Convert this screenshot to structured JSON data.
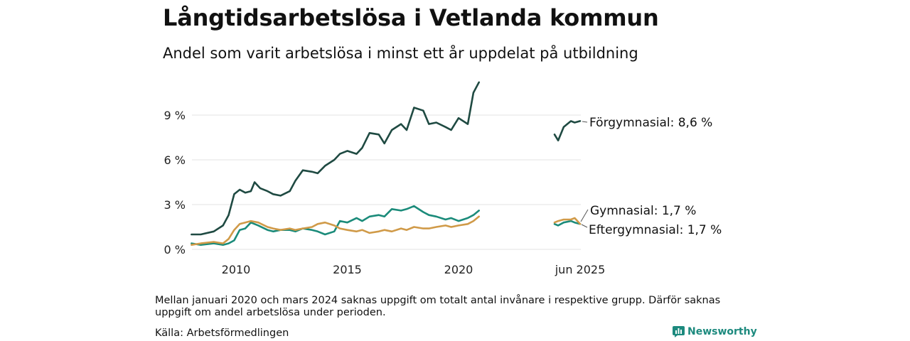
{
  "title": "Långtidsarbetslösa i Vetlanda kommun",
  "subtitle": "Andel som varit arbetslösa i minst ett år uppdelat på utbildning",
  "note": "Mellan januari 2020 och mars 2024 saknas uppgift om totalt antal invånare i respektive grupp. Därför saknas uppgift om andel arbetslösa under perioden.",
  "source": "Källa: Arbetsförmedlingen",
  "brand": "Newsworthy",
  "chart_data": {
    "type": "line",
    "title": "Långtidsarbetslösa i Vetlanda kommun",
    "subtitle": "Andel som varit arbetslösa i minst ett år uppdelat på utbildning",
    "xlabel": "",
    "ylabel": "",
    "ylim": [
      0,
      11.5
    ],
    "yticks": [
      0,
      3,
      6,
      9
    ],
    "ytick_labels": [
      "0 %",
      "3 %",
      "6 %",
      "9 %"
    ],
    "xtick_labels": [
      {
        "x": "2010-01",
        "label": "2010"
      },
      {
        "x": "2015-01",
        "label": "2015"
      },
      {
        "x": "2020-01",
        "label": "2020"
      },
      {
        "x": "2025-06",
        "label": "jun 2025"
      }
    ],
    "grid": "horizontal",
    "legend": "end-labels",
    "gap": {
      "from": "2020-12",
      "to": "2024-04"
    },
    "series": [
      {
        "name": "Förgymnasial",
        "end_label": "Förgymnasial: 8,6 %",
        "color": "#1f4a42",
        "segments": [
          [
            [
              "2008-01",
              1.0
            ],
            [
              "2008-06",
              1.0
            ],
            [
              "2009-01",
              1.2
            ],
            [
              "2009-06",
              1.6
            ],
            [
              "2009-09",
              2.3
            ],
            [
              "2009-12",
              3.7
            ],
            [
              "2010-03",
              4.0
            ],
            [
              "2010-06",
              3.8
            ],
            [
              "2010-09",
              3.9
            ],
            [
              "2010-11",
              4.5
            ],
            [
              "2011-02",
              4.1
            ],
            [
              "2011-06",
              3.9
            ],
            [
              "2011-09",
              3.7
            ],
            [
              "2012-01",
              3.6
            ],
            [
              "2012-06",
              3.9
            ],
            [
              "2012-09",
              4.6
            ],
            [
              "2013-01",
              5.3
            ],
            [
              "2013-06",
              5.2
            ],
            [
              "2013-09",
              5.1
            ],
            [
              "2014-01",
              5.6
            ],
            [
              "2014-06",
              6.0
            ],
            [
              "2014-09",
              6.4
            ],
            [
              "2015-01",
              6.6
            ],
            [
              "2015-06",
              6.4
            ],
            [
              "2015-09",
              6.8
            ],
            [
              "2016-01",
              7.8
            ],
            [
              "2016-06",
              7.7
            ],
            [
              "2016-09",
              7.1
            ],
            [
              "2017-01",
              8.0
            ],
            [
              "2017-06",
              8.4
            ],
            [
              "2017-09",
              8.0
            ],
            [
              "2018-01",
              9.5
            ],
            [
              "2018-06",
              9.3
            ],
            [
              "2018-09",
              8.4
            ],
            [
              "2019-01",
              8.5
            ],
            [
              "2019-06",
              8.2
            ],
            [
              "2019-09",
              8.0
            ],
            [
              "2020-01",
              8.8
            ],
            [
              "2020-06",
              8.4
            ],
            [
              "2020-09",
              10.5
            ],
            [
              "2020-12",
              11.2
            ]
          ],
          [
            [
              "2024-04",
              7.7
            ],
            [
              "2024-06",
              7.3
            ],
            [
              "2024-09",
              8.2
            ],
            [
              "2025-01",
              8.6
            ],
            [
              "2025-03",
              8.5
            ],
            [
              "2025-06",
              8.6
            ]
          ]
        ]
      },
      {
        "name": "Gymnasial",
        "end_label": "Gymnasial: 1,7 %",
        "color": "#1b8b7a",
        "segments": [
          [
            [
              "2008-01",
              0.4
            ],
            [
              "2008-06",
              0.3
            ],
            [
              "2009-01",
              0.4
            ],
            [
              "2009-06",
              0.3
            ],
            [
              "2009-09",
              0.4
            ],
            [
              "2009-12",
              0.6
            ],
            [
              "2010-03",
              1.3
            ],
            [
              "2010-06",
              1.4
            ],
            [
              "2010-09",
              1.8
            ],
            [
              "2011-01",
              1.6
            ],
            [
              "2011-06",
              1.3
            ],
            [
              "2011-09",
              1.2
            ],
            [
              "2012-01",
              1.3
            ],
            [
              "2012-06",
              1.3
            ],
            [
              "2012-09",
              1.2
            ],
            [
              "2013-01",
              1.4
            ],
            [
              "2013-06",
              1.3
            ],
            [
              "2013-09",
              1.2
            ],
            [
              "2014-01",
              1.0
            ],
            [
              "2014-06",
              1.2
            ],
            [
              "2014-09",
              1.9
            ],
            [
              "2015-01",
              1.8
            ],
            [
              "2015-06",
              2.1
            ],
            [
              "2015-09",
              1.9
            ],
            [
              "2016-01",
              2.2
            ],
            [
              "2016-06",
              2.3
            ],
            [
              "2016-09",
              2.2
            ],
            [
              "2017-01",
              2.7
            ],
            [
              "2017-06",
              2.6
            ],
            [
              "2017-09",
              2.7
            ],
            [
              "2018-01",
              2.9
            ],
            [
              "2018-06",
              2.5
            ],
            [
              "2018-09",
              2.3
            ],
            [
              "2019-01",
              2.2
            ],
            [
              "2019-06",
              2.0
            ],
            [
              "2019-09",
              2.1
            ],
            [
              "2020-01",
              1.9
            ],
            [
              "2020-06",
              2.1
            ],
            [
              "2020-09",
              2.3
            ],
            [
              "2020-12",
              2.6
            ]
          ],
          [
            [
              "2024-04",
              1.7
            ],
            [
              "2024-06",
              1.6
            ],
            [
              "2024-09",
              1.8
            ],
            [
              "2025-01",
              1.9
            ],
            [
              "2025-03",
              1.8
            ],
            [
              "2025-06",
              1.7
            ]
          ]
        ]
      },
      {
        "name": "Eftergymnasial",
        "end_label": "Eftergymnasial: 1,7 %",
        "color": "#d09a48",
        "segments": [
          [
            [
              "2008-01",
              0.3
            ],
            [
              "2008-06",
              0.4
            ],
            [
              "2009-01",
              0.5
            ],
            [
              "2009-06",
              0.4
            ],
            [
              "2009-09",
              0.7
            ],
            [
              "2009-12",
              1.3
            ],
            [
              "2010-03",
              1.7
            ],
            [
              "2010-06",
              1.8
            ],
            [
              "2010-09",
              1.9
            ],
            [
              "2011-01",
              1.8
            ],
            [
              "2011-06",
              1.5
            ],
            [
              "2011-09",
              1.4
            ],
            [
              "2012-01",
              1.3
            ],
            [
              "2012-06",
              1.4
            ],
            [
              "2012-09",
              1.3
            ],
            [
              "2013-01",
              1.4
            ],
            [
              "2013-06",
              1.5
            ],
            [
              "2013-09",
              1.7
            ],
            [
              "2014-01",
              1.8
            ],
            [
              "2014-06",
              1.6
            ],
            [
              "2014-09",
              1.4
            ],
            [
              "2015-01",
              1.3
            ],
            [
              "2015-06",
              1.2
            ],
            [
              "2015-09",
              1.3
            ],
            [
              "2016-01",
              1.1
            ],
            [
              "2016-06",
              1.2
            ],
            [
              "2016-09",
              1.3
            ],
            [
              "2017-01",
              1.2
            ],
            [
              "2017-06",
              1.4
            ],
            [
              "2017-09",
              1.3
            ],
            [
              "2018-01",
              1.5
            ],
            [
              "2018-06",
              1.4
            ],
            [
              "2018-09",
              1.4
            ],
            [
              "2019-01",
              1.5
            ],
            [
              "2019-06",
              1.6
            ],
            [
              "2019-09",
              1.5
            ],
            [
              "2020-01",
              1.6
            ],
            [
              "2020-06",
              1.7
            ],
            [
              "2020-09",
              1.9
            ],
            [
              "2020-12",
              2.2
            ]
          ],
          [
            [
              "2024-04",
              1.8
            ],
            [
              "2024-06",
              1.9
            ],
            [
              "2024-09",
              2.0
            ],
            [
              "2025-01",
              2.0
            ],
            [
              "2025-03",
              2.1
            ],
            [
              "2025-06",
              1.7
            ]
          ]
        ]
      }
    ]
  }
}
